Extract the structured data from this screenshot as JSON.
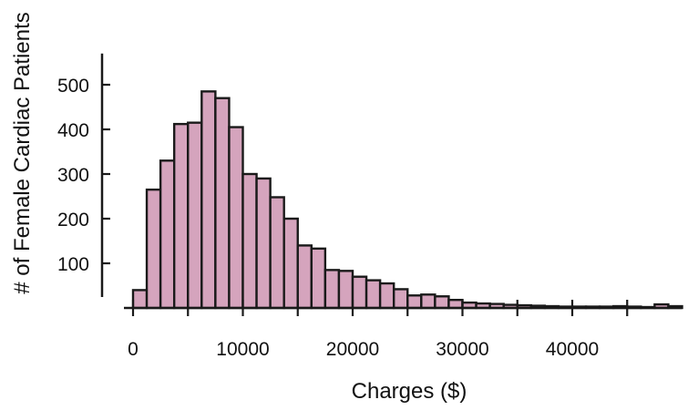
{
  "chart_data": {
    "type": "bar",
    "subtype": "histogram",
    "title": "",
    "xlabel": "Charges ($)",
    "ylabel": "# of Female Cardiac Patients",
    "bin_width": 1250,
    "bin_start": 0,
    "x_ticks": [
      0,
      10000,
      20000,
      30000,
      40000
    ],
    "x_tick_labels": [
      "0",
      "10000",
      "20000",
      "30000",
      "40000"
    ],
    "x_minor_ticks": [
      5000,
      15000,
      25000,
      35000,
      45000
    ],
    "y_ticks": [
      100,
      200,
      300,
      400,
      500
    ],
    "y_tick_labels": [
      "100",
      "200",
      "300",
      "400",
      "500"
    ],
    "xlim": [
      -1000,
      50000
    ],
    "ylim": [
      0,
      570
    ],
    "grid": false,
    "legend": "none",
    "values": [
      40,
      265,
      330,
      412,
      415,
      485,
      470,
      405,
      300,
      290,
      248,
      200,
      140,
      133,
      85,
      83,
      70,
      62,
      55,
      42,
      28,
      30,
      26,
      18,
      12,
      10,
      9,
      7,
      6,
      5,
      4,
      3,
      3,
      3,
      3,
      4,
      3,
      2,
      8,
      4
    ],
    "colors": {
      "bar_fill": "#d5a4bd",
      "bar_stroke": "#1a1a1a",
      "axis": "#1a1a1a"
    }
  }
}
